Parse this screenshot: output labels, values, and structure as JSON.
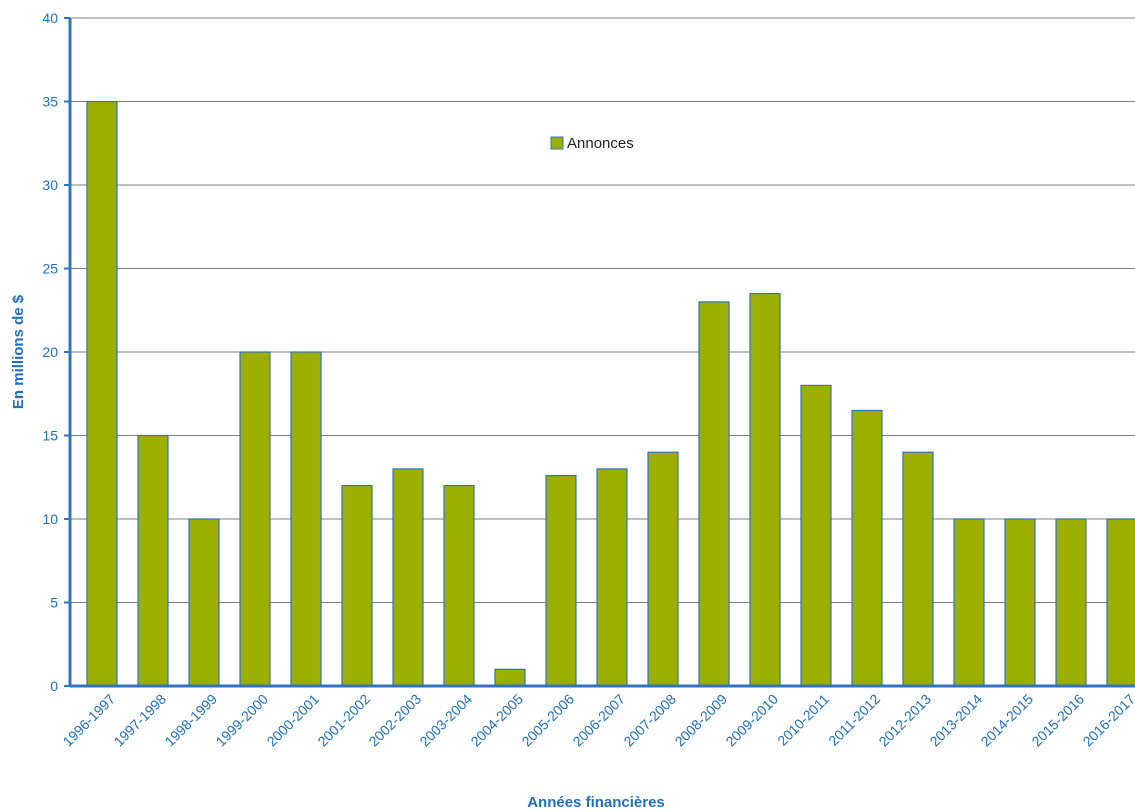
{
  "chart_data": {
    "type": "bar",
    "categories": [
      "1996-1997",
      "1997-1998",
      "1998-1999",
      "1999-2000",
      "2000-2001",
      "2001-2002",
      "2002-2003",
      "2003-2004",
      "2004-2005",
      "2005-2006",
      "2006-2007",
      "2007-2008",
      "2008-2009",
      "2009-2010",
      "2010-2011",
      "2011-2012",
      "2012-2013",
      "2013-2014",
      "2014-2015",
      "2015-2016",
      "2016-2017"
    ],
    "series": [
      {
        "name": "Annonces",
        "values": [
          35,
          15,
          10,
          20,
          20,
          12,
          13,
          12,
          1,
          12.6,
          13,
          14,
          23,
          23.5,
          18,
          16.5,
          14,
          10,
          10,
          10,
          10
        ]
      }
    ],
    "xlabel": "Années financières",
    "ylabel": "En millions de $",
    "ylim": [
      0,
      40
    ],
    "yticks": [
      0,
      5,
      10,
      15,
      20,
      25,
      30,
      35,
      40
    ],
    "grid": true,
    "legend_position": "top-center",
    "colors": {
      "bar_fill": "#9caf00",
      "bar_stroke": "#2f74c0",
      "axis": "#2f74c0",
      "grid": "#7f7f7f",
      "text": "#1f6fc0"
    }
  }
}
